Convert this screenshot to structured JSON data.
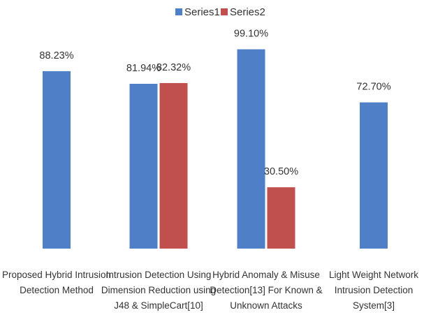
{
  "chart_data": {
    "type": "bar",
    "categories": [
      [
        "Proposed Hybrid Intrusion",
        "Detection Method"
      ],
      [
        "Intrusion Detection Using",
        "Dimension Reduction using",
        "J48 & SimpleCart[10]"
      ],
      [
        "Hybrid Anomaly & Misuse",
        "Detection[13] For Known &",
        "Unknown Attacks"
      ],
      [
        "Light Weight Network",
        "Intrusion Detection",
        "System[3]"
      ]
    ],
    "series": [
      {
        "name": "Series1",
        "color": "#4f7fc7",
        "values": [
          88.23,
          81.94,
          99.1,
          72.7
        ],
        "labels": [
          "88.23%",
          "81.94%",
          "99.10%",
          "72.70%"
        ]
      },
      {
        "name": "Series2",
        "color": "#c0504d",
        "values": [
          null,
          82.32,
          30.5,
          null
        ],
        "labels": [
          "",
          "82.32%",
          "30.50%",
          ""
        ]
      }
    ],
    "legend": "top-center",
    "grid": false,
    "ylim": [
      0,
      100
    ]
  }
}
